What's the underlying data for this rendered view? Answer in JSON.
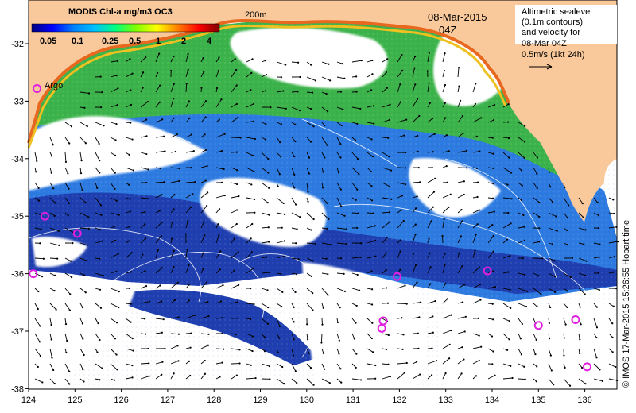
{
  "map": {
    "legend_title": "MODIS Chl-a mg/m3 OC3",
    "legend_ticks": [
      "0.05",
      "0.1",
      "0.25",
      "0.5",
      "1",
      "2",
      "4"
    ],
    "contour_label": "200m",
    "date_line1": "08-Mar-2015",
    "date_line2": "04Z",
    "info_lines": [
      "Altimetric sealevel",
      "(0.1m contours)",
      "and velocity for",
      "08-Mar 04Z",
      "0.5m/s (1kt 24h)"
    ],
    "argo_label": "Argo",
    "credit": "© IMOS 17-Mar-2015 15:26:55 Hobart time",
    "lon_ticks": [
      "124",
      "125",
      "126",
      "127",
      "128",
      "129",
      "130",
      "131",
      "132",
      "133",
      "134",
      "135",
      "136"
    ],
    "lat_ticks": [
      "-32",
      "-33",
      "-34",
      "-35",
      "-36",
      "-37",
      "-38"
    ],
    "colors": {
      "land": "#f9c99b",
      "ocean_deep": "#1f3fb0",
      "ocean_mid": "#2d7ae0",
      "ocean_cyan": "#3cb8d8",
      "coastal_green": "#3cb34a",
      "argo": "#e020e0",
      "legend_gradient": [
        "#000080",
        "#0000ff",
        "#0080ff",
        "#00c0ff",
        "#00ff80",
        "#80ff00",
        "#ffff00",
        "#ff8000",
        "#ff0000",
        "#800000"
      ]
    }
  },
  "argo_floats": [
    {
      "lon": 124.18,
      "lat": -32.78
    },
    {
      "lon": 124.35,
      "lat": -35.0
    },
    {
      "lon": 125.05,
      "lat": -35.3
    },
    {
      "lon": 124.1,
      "lat": -36.0
    },
    {
      "lon": 131.95,
      "lat": -36.05
    },
    {
      "lon": 133.9,
      "lat": -35.95
    },
    {
      "lon": 131.65,
      "lat": -36.82
    },
    {
      "lon": 131.62,
      "lat": -36.95
    },
    {
      "lon": 135.0,
      "lat": -36.9
    },
    {
      "lon": 135.8,
      "lat": -36.8
    },
    {
      "lon": 136.05,
      "lat": -37.62
    }
  ]
}
